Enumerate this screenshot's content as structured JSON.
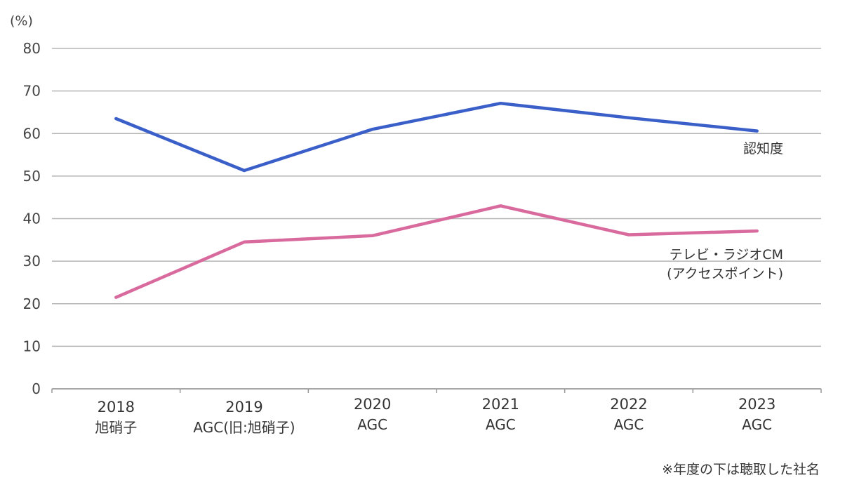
{
  "chart_data": {
    "type": "line",
    "y_unit": "(%)",
    "ylim": [
      0,
      80
    ],
    "yticks": [
      0,
      10,
      20,
      30,
      40,
      50,
      60,
      70,
      80
    ],
    "grid": true,
    "categories": [
      {
        "year": "2018",
        "company": "旭硝子"
      },
      {
        "year": "2019",
        "company": "AGC(旧:旭硝子)"
      },
      {
        "year": "2020",
        "company": "AGC"
      },
      {
        "year": "2021",
        "company": "AGC"
      },
      {
        "year": "2022",
        "company": "AGC"
      },
      {
        "year": "2023",
        "company": "AGC"
      }
    ],
    "series": [
      {
        "name": "認知度",
        "name_lines": [
          "認知度"
        ],
        "color": "#3a5fc8",
        "values": [
          63.5,
          51.3,
          61.0,
          67.1,
          63.7,
          60.6
        ]
      },
      {
        "name": "テレビ・ラジオCM(アクセスポイント)",
        "name_lines": [
          "テレビ・ラジオCM",
          "(アクセスポイント)"
        ],
        "color": "#d96a9e",
        "values": [
          21.5,
          34.5,
          36.0,
          43.0,
          36.2,
          37.1
        ]
      }
    ],
    "footnote": "※年度の下は聴取した社名"
  }
}
